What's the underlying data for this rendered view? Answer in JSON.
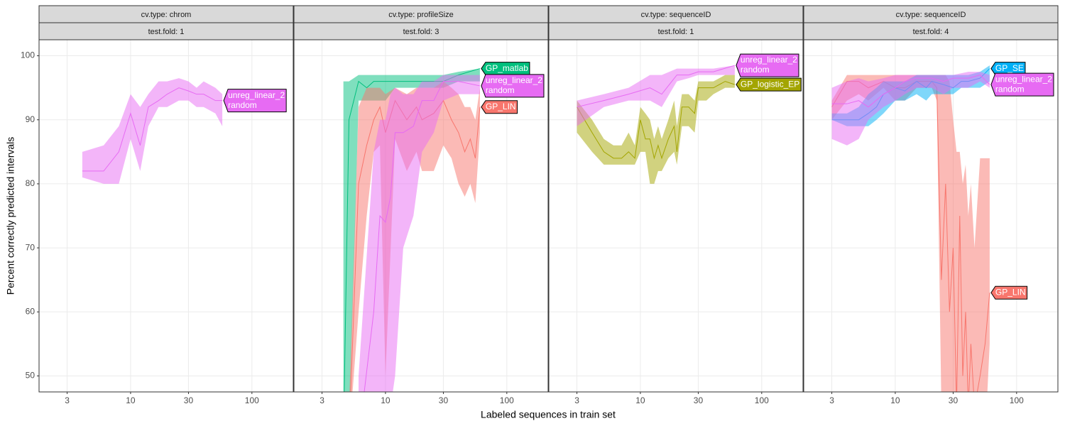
{
  "chart_data": {
    "type": "line",
    "x_label": "Labeled sequences in train set",
    "y_label": "Percent correctly predicted intervals",
    "xlim": [
      1.76,
      219
    ],
    "ylim": [
      47.5,
      102.5
    ],
    "x_log": true,
    "grid": true,
    "xticks": [
      3,
      10,
      30,
      100
    ],
    "yticks": [
      50,
      60,
      70,
      80,
      90,
      100
    ],
    "panels": [
      {
        "strip": [
          "cv.type: chrom",
          "test.fold: 1"
        ],
        "series": [
          {
            "label": [
              "unreg_linear_2",
              "random"
            ],
            "color": "#e76bf3",
            "x": [
              4,
              6,
              8,
              10,
              12,
              14,
              17,
              20,
              25,
              30,
              35,
              40,
              50,
              57
            ],
            "values": [
              82,
              82,
              85,
              91,
              86,
              92,
              93,
              94,
              95,
              94.5,
              94,
              94,
              93,
              93
            ],
            "lower": [
              81,
              80,
              80,
              87,
              82,
              89,
              92,
              92,
              93,
              93,
              92,
              92,
              91,
              89
            ],
            "upper": [
              85,
              86,
              89,
              94,
              92,
              94,
              96,
              96,
              96.5,
              96,
              95,
              96,
              95,
              94
            ]
          }
        ]
      },
      {
        "strip": [
          "cv.type: profileSize",
          "test.fold: 3"
        ],
        "series": [
          {
            "label": [
              "GP_matlab"
            ],
            "color": "#00bf7d",
            "x": [
              4.5,
              5,
              6,
              7,
              8,
              10,
              12,
              15,
              20,
              30,
              40,
              60
            ],
            "values": [
              40,
              90,
              96,
              95,
              96,
              96,
              96,
              96,
              96,
              96,
              97,
              98
            ],
            "lower": [
              40,
              40,
              93,
              93,
              93,
              93,
              95,
              95,
              95,
              95,
              96,
              96
            ],
            "upper": [
              96,
              96,
              97,
              97,
              97,
              97,
              97,
              97,
              97,
              97,
              97.5,
              98
            ]
          },
          {
            "label": [
              "GP_LIN"
            ],
            "color": "#f8766d",
            "x": [
              5,
              6,
              7,
              8,
              9,
              10,
              12,
              15,
              18,
              20,
              25,
              30,
              35,
              40,
              45,
              50,
              55,
              60
            ],
            "values": [
              40,
              80,
              86,
              90,
              92,
              88,
              93,
              90,
              92,
              90,
              91,
              93,
              90,
              88,
              85,
              87,
              84,
              92
            ],
            "lower": [
              40,
              60,
              75,
              85,
              86,
              50,
              87,
              82,
              85,
              82,
              82,
              86,
              84,
              80,
              78,
              80,
              77,
              88
            ],
            "upper": [
              45,
              92,
              95,
              95,
              95,
              94,
              95,
              94,
              95,
              95,
              95,
              96,
              95,
              94,
              92,
              92,
              90,
              95
            ]
          },
          {
            "label": [
              "unreg_linear_2",
              "random"
            ],
            "color": "#e76bf3",
            "x": [
              6,
              8,
              9,
              10,
              11,
              12,
              14,
              17,
              20,
              25,
              30,
              40,
              60
            ],
            "values": [
              40,
              60,
              75,
              74,
              78,
              88,
              88,
              89,
              93,
              93,
              96,
              96,
              95.3
            ],
            "lower": [
              40,
              40,
              45,
              40,
              45,
              50,
              70,
              75,
              85,
              88,
              93,
              94,
              94
            ],
            "upper": [
              50,
              85,
              90,
              90,
              94,
              95,
              94,
              94,
              96,
              96,
              97,
              97,
              97
            ]
          }
        ]
      },
      {
        "strip": [
          "cv.type: sequenceID",
          "test.fold: 1"
        ],
        "series": [
          {
            "label": [
              "GP_logistic_EP"
            ],
            "color": "#a3a500",
            "x": [
              3,
              4,
              5,
              6,
              7,
              8,
              9,
              10,
              11,
              12,
              13,
              14,
              15,
              17,
              19,
              20,
              22,
              25,
              28,
              30,
              35,
              40,
              50,
              60
            ],
            "values": [
              92,
              88,
              85,
              84,
              84,
              85,
              84,
              90,
              87,
              87,
              84,
              86,
              84,
              87,
              89,
              85,
              92,
              92,
              91,
              95,
              95,
              95,
              96,
              95.5
            ],
            "lower": [
              88,
              85,
              83,
              83,
              83,
              83,
              83,
              85,
              85,
              80,
              80,
              82,
              82,
              84,
              85,
              83,
              89,
              89,
              88,
              93,
              93,
              94,
              95,
              95
            ],
            "upper": [
              93,
              90,
              87,
              86,
              86,
              88,
              86,
              92,
              91,
              90,
              87,
              89,
              87,
              90,
              93,
              89,
              94,
              94,
              93,
              96,
              96,
              96,
              97,
              97
            ]
          },
          {
            "label": [
              "unreg_linear_2",
              "random"
            ],
            "color": "#e76bf3",
            "x": [
              3,
              5,
              8,
              12,
              15,
              20,
              25,
              30,
              40,
              60
            ],
            "values": [
              92,
              93,
              94,
              95,
              94,
              97,
              97,
              97.5,
              97.5,
              98.5
            ],
            "lower": [
              89,
              92,
              93,
              93,
              92,
              96,
              96.5,
              97,
              97,
              97
            ],
            "upper": [
              93,
              94,
              95,
              97,
              97,
              98,
              98,
              98,
              98,
              98.5
            ]
          }
        ]
      },
      {
        "strip": [
          "cv.type: sequenceID",
          "test.fold: 4"
        ],
        "series": [
          {
            "label": [
              "GP_LIN"
            ],
            "color": "#f8766d",
            "x": [
              3,
              4,
              5,
              6,
              8,
              10,
              12,
              15,
              20,
              22,
              24,
              26,
              28,
              30,
              32,
              34,
              36,
              38,
              40,
              42,
              45,
              50,
              55,
              60
            ],
            "values": [
              92,
              96,
              96,
              95,
              96,
              95,
              95,
              96,
              96,
              95,
              65,
              80,
              60,
              70,
              45,
              75,
              50,
              60,
              45,
              55,
              45,
              50,
              55,
              63
            ],
            "lower": [
              90,
              93,
              94,
              93,
              95,
              93,
              93,
              95,
              95,
              93,
              45,
              45,
              45,
              45,
              40,
              45,
              40,
              40,
              40,
              40,
              40,
              40,
              40,
              55
            ],
            "upper": [
              93,
              97,
              97,
              97,
              97,
              97,
              97,
              97,
              97,
              97,
              97,
              97,
              96,
              90,
              85,
              85,
              80,
              83,
              75,
              80,
              70,
              84,
              84,
              84
            ]
          },
          {
            "label": [
              "GP_SE"
            ],
            "color": "#00b0f6",
            "x": [
              3,
              4,
              5,
              6,
              7,
              8,
              10,
              12,
              15,
              18,
              20,
              25,
              30,
              35,
              40,
              50,
              60
            ],
            "values": [
              90,
              90,
              90,
              91,
              92,
              94,
              95,
              94.5,
              96,
              95,
              96,
              95.5,
              95,
              96,
              96,
              96.5,
              98
            ],
            "lower": [
              90,
              89,
              89,
              89,
              90,
              91,
              93,
              93,
              94,
              93,
              94,
              94,
              94,
              95,
              95,
              95,
              96
            ],
            "upper": [
              91,
              91,
              92,
              94,
              95,
              96,
              96,
              96,
              97,
              97,
              97,
              97,
              97,
              97,
              97,
              97.5,
              98.5
            ]
          },
          {
            "label": [
              "unreg_linear_2",
              "random"
            ],
            "color": "#e76bf3",
            "x": [
              3,
              4,
              5,
              6,
              8,
              10,
              12,
              15,
              20,
              25,
              30,
              40,
              50,
              60
            ],
            "values": [
              92.5,
              92.5,
              93,
              92,
              94,
              95,
              96,
              96.5,
              96.5,
              96,
              96.5,
              96.5,
              97,
              95.5
            ],
            "lower": [
              87,
              86,
              87,
              90,
              92,
              93,
              94,
              95,
              95,
              94,
              95,
              95,
              96,
              95
            ],
            "upper": [
              95,
              96,
              96.5,
              96,
              96.5,
              97,
              97,
              97,
              97,
              97,
              97,
              97.5,
              97.5,
              97
            ]
          }
        ]
      }
    ]
  }
}
